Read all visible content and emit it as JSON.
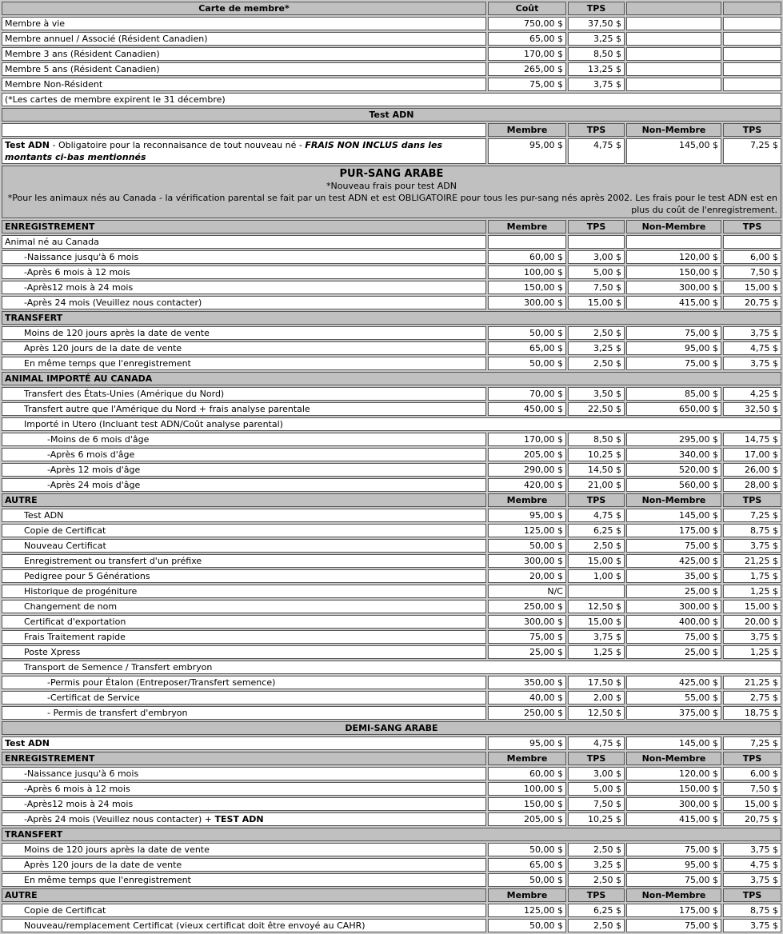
{
  "table": {
    "colors": {
      "header_bg": "#c0c0c0",
      "cell_bg": "#ffffff",
      "border": "#565656",
      "gap_bg": "#c9c9c9",
      "text": "#000000"
    },
    "default_columns": [
      "Membre",
      "TPS",
      "Non-Membre",
      "TPS"
    ],
    "rows": [
      {
        "t": "cols",
        "label": "Carte de membre*",
        "align": "center",
        "cols": [
          "Coût",
          "TPS",
          "",
          ""
        ]
      },
      {
        "t": "row",
        "label": "Membre à vie",
        "v": [
          "750,00 $",
          "37,50 $",
          "",
          ""
        ]
      },
      {
        "t": "row",
        "label": "Membre annuel / Associé (Résident Canadien)",
        "v": [
          "65,00 $",
          "3,25 $",
          "",
          ""
        ]
      },
      {
        "t": "row",
        "label": "Membre 3 ans (Résident Canadien)",
        "v": [
          "170,00 $",
          "8,50 $",
          "",
          ""
        ]
      },
      {
        "t": "row",
        "label": "Membre 5 ans (Résident Canadien)",
        "v": [
          "265,00 $",
          "13,25 $",
          "",
          ""
        ]
      },
      {
        "t": "row",
        "label": "Membre Non-Résident",
        "v": [
          "75,00 $",
          "3,75 $",
          "",
          ""
        ]
      },
      {
        "t": "span",
        "label": "(*Les cartes de membre expirent le 31 décembre)"
      },
      {
        "t": "band",
        "text": "Test ADN"
      },
      {
        "t": "cols",
        "label": "",
        "whiteFirst": true,
        "cols": [
          "Membre",
          "TPS",
          "Non-Membre",
          "TPS"
        ]
      },
      {
        "t": "row",
        "wrap": true,
        "parts": [
          {
            "text": "Test ADN",
            "b": true
          },
          {
            "text": " - Obligatoire pour la reconnaisance de tout nouveau né - "
          },
          {
            "text": "FRAIS NON INCLUS dans les montants ci-bas mentionnés",
            "b": true,
            "i": true
          }
        ],
        "v": [
          "95,00 $",
          "4,75 $",
          "145,00 $",
          "7,25 $"
        ]
      },
      {
        "t": "notes",
        "lines": [
          {
            "text": "PUR-SANG ARABE",
            "b": true,
            "align": "center",
            "big": true
          },
          {
            "text": "*Nouveau frais pour test ADN",
            "align": "center"
          },
          {
            "text": "*Pour les animaux nés au Canada - la vérification parental se fait par un test ADN et est OBLIGATOIRE pour tous les pur-sang nés après 2002. Les frais pour le test ADN est en plus du coût de l'enregistrement.",
            "align": "right"
          }
        ]
      },
      {
        "t": "cols",
        "label": "ENREGISTREMENT",
        "cols": [
          "Membre",
          "TPS",
          "Non-Membre",
          "TPS"
        ]
      },
      {
        "t": "row",
        "label": "Animal né au Canada",
        "v": [
          "",
          "",
          "",
          ""
        ]
      },
      {
        "t": "row",
        "label": "-Naissance jusqu'à 6 mois",
        "indent": 1,
        "v": [
          "60,00 $",
          "3,00 $",
          "120,00 $",
          "6,00 $"
        ]
      },
      {
        "t": "row",
        "label": "-Après 6 mois à 12 mois",
        "indent": 1,
        "v": [
          "100,00 $",
          "5,00 $",
          "150,00 $",
          "7,50 $"
        ]
      },
      {
        "t": "row",
        "label": "-Après12 mois à 24 mois",
        "indent": 1,
        "v": [
          "150,00 $",
          "7,50 $",
          "300,00 $",
          "15,00 $"
        ]
      },
      {
        "t": "row",
        "label": "-Après 24 mois (Veuillez nous contacter)",
        "indent": 1,
        "v": [
          "300,00 $",
          "15,00 $",
          "415,00 $",
          "20,75 $"
        ]
      },
      {
        "t": "bandleft",
        "text": "TRANSFERT"
      },
      {
        "t": "row",
        "label": "Moins de 120 jours après la date de vente",
        "indent": 1,
        "v": [
          "50,00 $",
          "2,50 $",
          "75,00 $",
          "3,75 $"
        ]
      },
      {
        "t": "row",
        "label": "Après 120 jours de la date de vente",
        "indent": 1,
        "v": [
          "65,00 $",
          "3,25 $",
          "95,00 $",
          "4,75 $"
        ]
      },
      {
        "t": "row",
        "label": "En même temps que l'enregistrement",
        "indent": 1,
        "v": [
          "50,00 $",
          "2,50 $",
          "75,00 $",
          "3,75 $"
        ]
      },
      {
        "t": "bandleft",
        "text": "ANIMAL IMPORTÉ AU CANADA"
      },
      {
        "t": "row",
        "label": "Transfert des États-Unies (Amérique du Nord)",
        "indent": 1,
        "v": [
          "70,00 $",
          "3,50 $",
          "85,00 $",
          "4,25 $"
        ]
      },
      {
        "t": "row",
        "label": "Transfert autre que l'Amérique du Nord + frais analyse parentale",
        "indent": 1,
        "v": [
          "450,00 $",
          "22,50 $",
          "650,00 $",
          "32,50 $"
        ]
      },
      {
        "t": "span",
        "label": "Importé in Utero (Incluant test ADN/Coût analyse parental)",
        "indent": 1
      },
      {
        "t": "row",
        "label": "-Moins de 6 mois d'âge",
        "indent": 2,
        "v": [
          "170,00 $",
          "8,50 $",
          "295,00 $",
          "14,75 $"
        ]
      },
      {
        "t": "row",
        "label": "-Après 6 mois d'âge",
        "indent": 2,
        "v": [
          "205,00 $",
          "10,25 $",
          "340,00 $",
          "17,00 $"
        ]
      },
      {
        "t": "row",
        "label": "-Après 12 mois d'âge",
        "indent": 2,
        "v": [
          "290,00 $",
          "14,50 $",
          "520,00 $",
          "26,00 $"
        ]
      },
      {
        "t": "row",
        "label": "-Après 24 mois d'âge",
        "indent": 2,
        "v": [
          "420,00 $",
          "21,00 $",
          "560,00 $",
          "28,00 $"
        ]
      },
      {
        "t": "cols",
        "label": "AUTRE",
        "cols": [
          "Membre",
          "TPS",
          "Non-Membre",
          "TPS"
        ]
      },
      {
        "t": "row",
        "label": "Test ADN",
        "indent": 1,
        "v": [
          "95,00 $",
          "4,75 $",
          "145,00 $",
          "7,25 $"
        ]
      },
      {
        "t": "row",
        "label": "Copie de Certificat",
        "indent": 1,
        "v": [
          "125,00 $",
          "6,25 $",
          "175,00 $",
          "8,75 $"
        ]
      },
      {
        "t": "row",
        "label": "Nouveau Certificat",
        "indent": 1,
        "v": [
          "50,00 $",
          "2,50 $",
          "75,00 $",
          "3,75 $"
        ]
      },
      {
        "t": "row",
        "label": "Enregistrement ou transfert d'un préfixe",
        "indent": 1,
        "v": [
          "300,00 $",
          "15,00 $",
          "425,00 $",
          "21,25 $"
        ]
      },
      {
        "t": "row",
        "label": "Pedigree pour 5 Générations",
        "indent": 1,
        "v": [
          "20,00 $",
          "1,00 $",
          "35,00 $",
          "1,75 $"
        ]
      },
      {
        "t": "row",
        "label": "Historique de progéniture",
        "indent": 1,
        "v": [
          "N/C",
          "",
          "25,00 $",
          "1,25 $"
        ]
      },
      {
        "t": "row",
        "label": "Changement de nom",
        "indent": 1,
        "v": [
          "250,00 $",
          "12,50 $",
          "300,00 $",
          "15,00 $"
        ]
      },
      {
        "t": "row",
        "label": "Certificat d'exportation",
        "indent": 1,
        "v": [
          "300,00 $",
          "15,00 $",
          "400,00 $",
          "20,00 $"
        ]
      },
      {
        "t": "row",
        "label": "Frais Traitement rapide",
        "indent": 1,
        "v": [
          "75,00 $",
          "3,75 $",
          "75,00 $",
          "3,75 $"
        ]
      },
      {
        "t": "row",
        "label": "Poste Xpress",
        "indent": 1,
        "v": [
          "25,00 $",
          "1,25 $",
          "25,00 $",
          "1,25 $"
        ]
      },
      {
        "t": "span",
        "label": "Transport de Semence / Transfert embryon",
        "indent": 1
      },
      {
        "t": "row",
        "label": "-Permis pour Étalon (Entreposer/Transfert semence)",
        "indent": 2,
        "v": [
          "350,00 $",
          "17,50 $",
          "425,00 $",
          "21,25 $"
        ]
      },
      {
        "t": "row",
        "label": "-Certificat de Service",
        "indent": 2,
        "v": [
          "40,00 $",
          "2,00 $",
          "55,00 $",
          "2,75 $"
        ]
      },
      {
        "t": "row",
        "label": "- Permis de transfert d'embryon",
        "indent": 2,
        "v": [
          "250,00 $",
          "12,50 $",
          "375,00 $",
          "18,75 $"
        ]
      },
      {
        "t": "band",
        "text": "DEMI-SANG ARABE"
      },
      {
        "t": "row",
        "label": "Test ADN",
        "bold": true,
        "v": [
          "95,00 $",
          "4,75 $",
          "145,00 $",
          "7,25 $"
        ]
      },
      {
        "t": "cols",
        "label": "ENREGISTREMENT",
        "cols": [
          "Membre",
          "TPS",
          "Non-Membre",
          "TPS"
        ]
      },
      {
        "t": "row",
        "label": "-Naissance jusqu'à 6 mois",
        "indent": 1,
        "v": [
          "60,00 $",
          "3,00 $",
          "120,00 $",
          "6,00 $"
        ]
      },
      {
        "t": "row",
        "label": "-Après 6 mois à 12 mois",
        "indent": 1,
        "v": [
          "100,00 $",
          "5,00 $",
          "150,00 $",
          "7,50 $"
        ]
      },
      {
        "t": "row",
        "label": "-Après12 mois à 24 mois",
        "indent": 1,
        "v": [
          "150,00 $",
          "7,50 $",
          "300,00 $",
          "15,00 $"
        ]
      },
      {
        "t": "row",
        "indent": 1,
        "parts": [
          {
            "text": "-Après 24 mois (Veuillez nous contacter) + "
          },
          {
            "text": "TEST ADN",
            "b": true
          }
        ],
        "v": [
          "205,00 $",
          "10,25 $",
          "415,00 $",
          "20,75 $"
        ]
      },
      {
        "t": "bandleft",
        "text": "TRANSFERT"
      },
      {
        "t": "row",
        "label": "Moins de 120 jours après la date de vente",
        "indent": 1,
        "v": [
          "50,00 $",
          "2,50 $",
          "75,00 $",
          "3,75 $"
        ]
      },
      {
        "t": "row",
        "label": "Après 120 jours de la date de vente",
        "indent": 1,
        "v": [
          "65,00 $",
          "3,25 $",
          "95,00 $",
          "4,75 $"
        ]
      },
      {
        "t": "row",
        "label": "En même temps que l'enregistrement",
        "indent": 1,
        "v": [
          "50,00 $",
          "2,50 $",
          "75,00 $",
          "3,75 $"
        ]
      },
      {
        "t": "cols",
        "label": "AUTRE",
        "cols": [
          "Membre",
          "TPS",
          "Non-Membre",
          "TPS"
        ]
      },
      {
        "t": "row",
        "label": "Copie de Certificat",
        "indent": 1,
        "v": [
          "125,00 $",
          "6,25 $",
          "175,00 $",
          "8,75 $"
        ]
      },
      {
        "t": "row",
        "label": "Nouveau/remplacement Certificat (vieux certificat doit être envoyé au CAHR)",
        "indent": 1,
        "v": [
          "50,00 $",
          "2,50 $",
          "75,00 $",
          "3,75 $"
        ]
      }
    ]
  }
}
